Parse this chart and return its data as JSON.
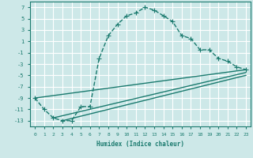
{
  "xlabel": "Humidex (Indice chaleur)",
  "ylabel": "",
  "background_color": "#cde8e8",
  "grid_color": "#ffffff",
  "line_color": "#1a7a6e",
  "xlim": [
    -0.5,
    23.5
  ],
  "ylim": [
    -14,
    8
  ],
  "yticks": [
    7,
    5,
    3,
    1,
    -1,
    -3,
    -5,
    -7,
    -9,
    -11,
    -13
  ],
  "xticks": [
    0,
    1,
    2,
    3,
    4,
    5,
    6,
    7,
    8,
    9,
    10,
    11,
    12,
    13,
    14,
    15,
    16,
    17,
    18,
    19,
    20,
    21,
    22,
    23
  ],
  "series": [
    {
      "x": [
        0,
        1,
        2,
        3,
        4,
        5,
        6,
        7,
        8,
        9,
        10,
        11,
        12,
        13,
        14,
        15,
        16,
        17,
        18,
        19,
        20,
        21,
        22,
        23
      ],
      "y": [
        -9,
        -11,
        -12.5,
        -13,
        -13,
        -10.5,
        -10.5,
        -2,
        2,
        4,
        5.5,
        6,
        7,
        6.5,
        5.5,
        4.5,
        2,
        1.5,
        -0.5,
        -0.5,
        -2,
        -2.5,
        -3.5,
        -4
      ],
      "marker": "+",
      "linestyle": "--",
      "linewidth": 1.0,
      "markersize": 4
    },
    {
      "x": [
        0,
        23
      ],
      "y": [
        -9,
        -4
      ],
      "marker": null,
      "linestyle": "-",
      "linewidth": 1.0,
      "markersize": 0
    },
    {
      "x": [
        2,
        23
      ],
      "y": [
        -12.5,
        -4.5
      ],
      "marker": null,
      "linestyle": "-",
      "linewidth": 1.0,
      "markersize": 0
    },
    {
      "x": [
        3,
        23
      ],
      "y": [
        -13,
        -5
      ],
      "marker": null,
      "linestyle": "-",
      "linewidth": 1.0,
      "markersize": 0
    }
  ]
}
